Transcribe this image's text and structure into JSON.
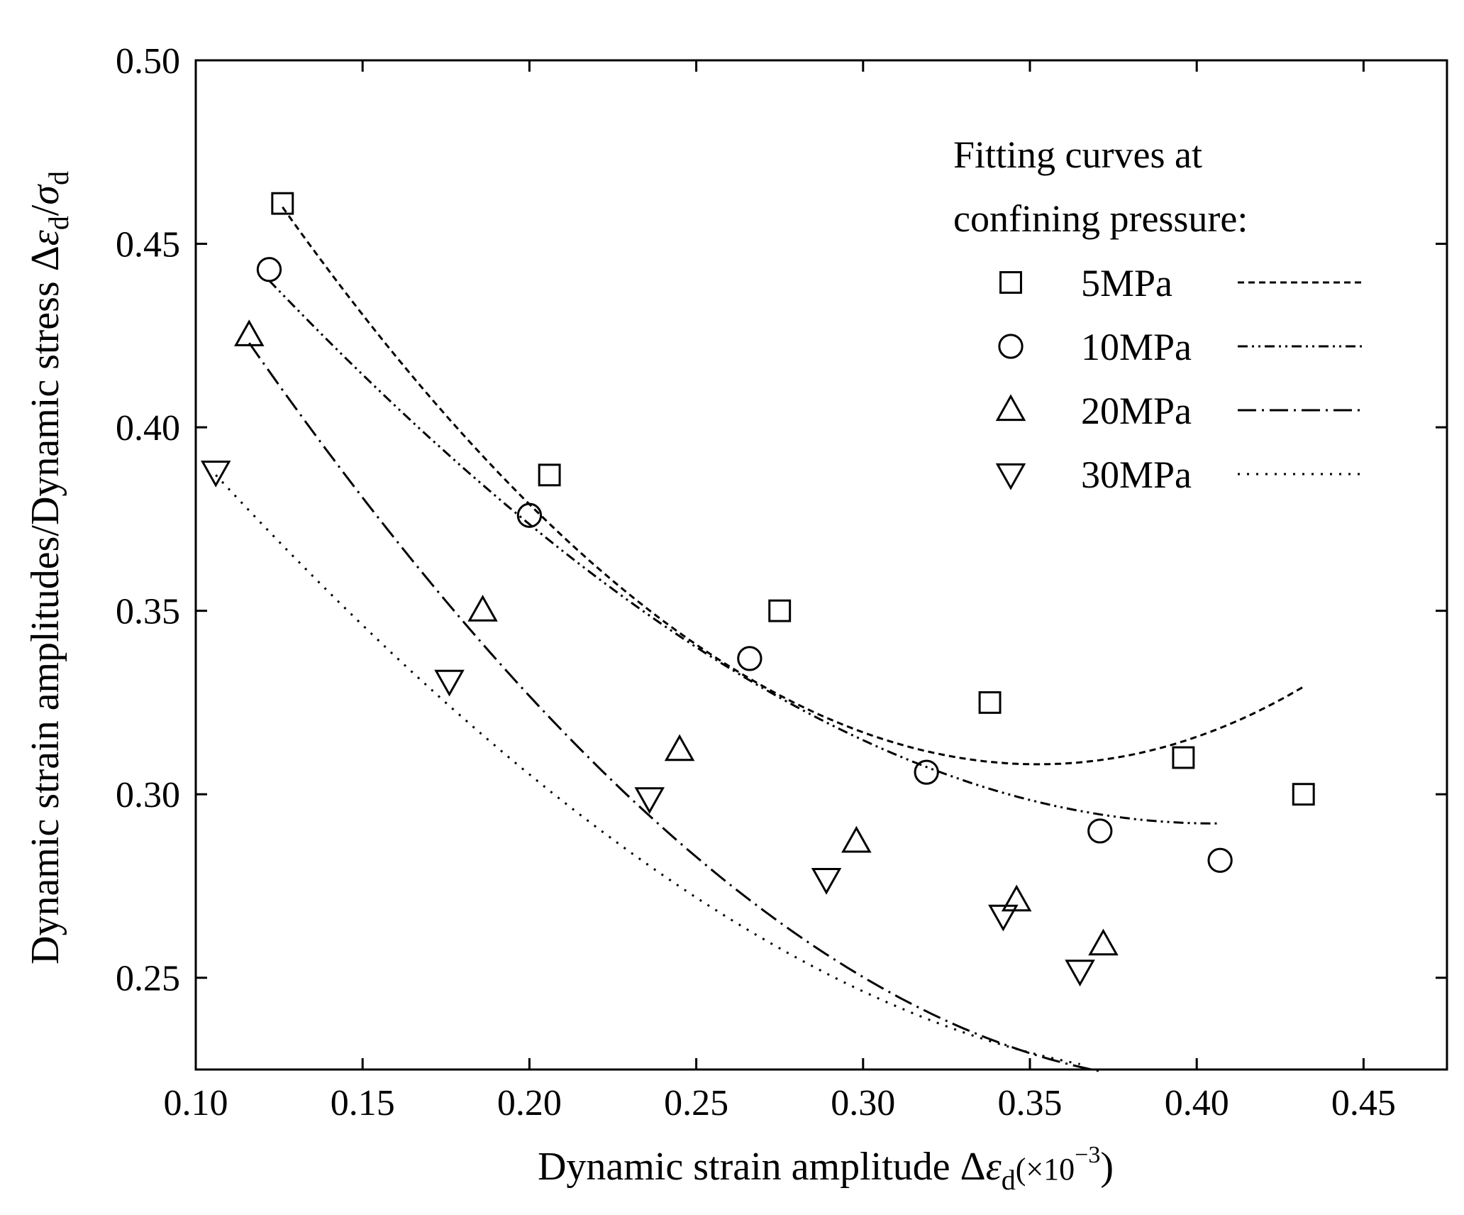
{
  "chart_data": {
    "type": "scatter",
    "xlabel": {
      "main": "Dynamic strain amplitude Δ",
      "symbol": "ε",
      "sub": "d",
      "unit_open": "(×10",
      "unit_exp": "−3",
      "unit_close": ")"
    },
    "ylabel": {
      "main": "Dynamic strain amplitudes/Dynamic stress Δ",
      "symbol": "ε",
      "sub": "d",
      "slash": "/",
      "symbol2": "σ",
      "sub2": "d"
    },
    "xlim": [
      0.1,
      0.475
    ],
    "ylim": [
      0.225,
      0.5
    ],
    "xticks": [
      "0.10",
      "0.15",
      "0.20",
      "0.25",
      "0.30",
      "0.35",
      "0.40",
      "0.45"
    ],
    "yticks": [
      "0.25",
      "0.30",
      "0.35",
      "0.40",
      "0.45",
      "0.50"
    ],
    "legend": {
      "title_line1": "Fitting curves at",
      "title_line2": "confining pressure:",
      "placement": "top-right"
    },
    "series": [
      {
        "name": "5MPa",
        "marker": "square",
        "dash": "short-dash",
        "x": [
          0.126,
          0.206,
          0.275,
          0.338,
          0.396,
          0.432
        ],
        "y": [
          0.461,
          0.387,
          0.35,
          0.325,
          0.31,
          0.3
        ],
        "fit": [
          0.46,
          -1.28,
          2.42,
          1.2
        ]
      },
      {
        "name": "10MPa",
        "marker": "circle",
        "dash": "dash-dot-dot",
        "x": [
          0.122,
          0.2,
          0.266,
          0.319,
          0.371,
          0.407
        ],
        "y": [
          0.443,
          0.376,
          0.337,
          0.306,
          0.29,
          0.282
        ],
        "fit": [
          0.44,
          -0.95,
          1.17,
          1.2
        ]
      },
      {
        "name": "20MPa",
        "marker": "triangle-up",
        "dash": "long-dash-dot",
        "x": [
          0.116,
          0.186,
          0.245,
          0.298,
          0.346,
          0.372
        ],
        "y": [
          0.425,
          0.35,
          0.312,
          0.287,
          0.271,
          0.259
        ],
        "fit": [
          0.423,
          -1.3,
          1.74,
          1.2
        ]
      },
      {
        "name": "30MPa",
        "marker": "triangle-down",
        "dash": "dotted",
        "x": [
          0.106,
          0.176,
          0.236,
          0.289,
          0.342,
          0.365
        ],
        "y": [
          0.388,
          0.331,
          0.299,
          0.277,
          0.267,
          0.252
        ],
        "fit": [
          0.387,
          -0.98,
          1.08,
          1.2
        ]
      }
    ]
  }
}
